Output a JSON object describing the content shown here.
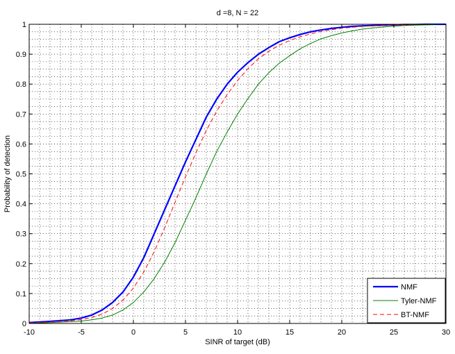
{
  "chart_data": {
    "type": "line",
    "title": "d =8, N = 22",
    "xlabel": "SINR of target (dB)",
    "ylabel": "Probability of detection",
    "xlim": [
      -10,
      30
    ],
    "ylim": [
      0,
      1
    ],
    "xticks": [
      -10,
      -5,
      0,
      5,
      10,
      15,
      20,
      25,
      30
    ],
    "yticks": [
      0,
      0.1,
      0.2,
      0.3,
      0.4,
      0.5,
      0.6,
      0.7,
      0.8,
      0.9,
      1
    ],
    "grid": "dotted",
    "legend_position": "bottom-right",
    "x": [
      -10,
      -8,
      -6,
      -5,
      -4,
      -3,
      -2,
      -1,
      0,
      1,
      2,
      3,
      4,
      5,
      6,
      7,
      8,
      9,
      10,
      11,
      12,
      13,
      14,
      15,
      16,
      17,
      18,
      19,
      20,
      21,
      22,
      23,
      24,
      25,
      26,
      27,
      28,
      30
    ],
    "series": [
      {
        "name": "NMF",
        "color": "#0000ff",
        "style": "solid-thick",
        "values": [
          0.003,
          0.007,
          0.012,
          0.018,
          0.028,
          0.045,
          0.07,
          0.105,
          0.155,
          0.22,
          0.3,
          0.38,
          0.46,
          0.54,
          0.615,
          0.69,
          0.75,
          0.8,
          0.84,
          0.872,
          0.9,
          0.922,
          0.942,
          0.955,
          0.966,
          0.975,
          0.981,
          0.986,
          0.99,
          0.993,
          0.995,
          0.996,
          0.997,
          0.998,
          0.999,
          0.999,
          1.0,
          1.0
        ]
      },
      {
        "name": "Tyler-NMF",
        "color": "#008000",
        "style": "solid",
        "values": [
          0.001,
          0.003,
          0.006,
          0.008,
          0.012,
          0.018,
          0.028,
          0.045,
          0.07,
          0.105,
          0.15,
          0.205,
          0.27,
          0.345,
          0.42,
          0.5,
          0.575,
          0.64,
          0.7,
          0.752,
          0.8,
          0.838,
          0.87,
          0.895,
          0.918,
          0.936,
          0.951,
          0.962,
          0.971,
          0.978,
          0.984,
          0.988,
          0.991,
          0.994,
          0.996,
          0.997,
          0.998,
          1.0
        ]
      },
      {
        "name": "BT-NMF",
        "color": "#ff0000",
        "style": "dashed",
        "values": [
          0.002,
          0.005,
          0.009,
          0.013,
          0.02,
          0.031,
          0.05,
          0.078,
          0.118,
          0.172,
          0.24,
          0.32,
          0.405,
          0.49,
          0.57,
          0.645,
          0.71,
          0.765,
          0.812,
          0.852,
          0.885,
          0.91,
          0.93,
          0.946,
          0.958,
          0.968,
          0.976,
          0.982,
          0.987,
          0.99,
          0.993,
          0.995,
          0.996,
          0.997,
          0.998,
          0.999,
          1.0,
          1.0
        ]
      }
    ]
  }
}
